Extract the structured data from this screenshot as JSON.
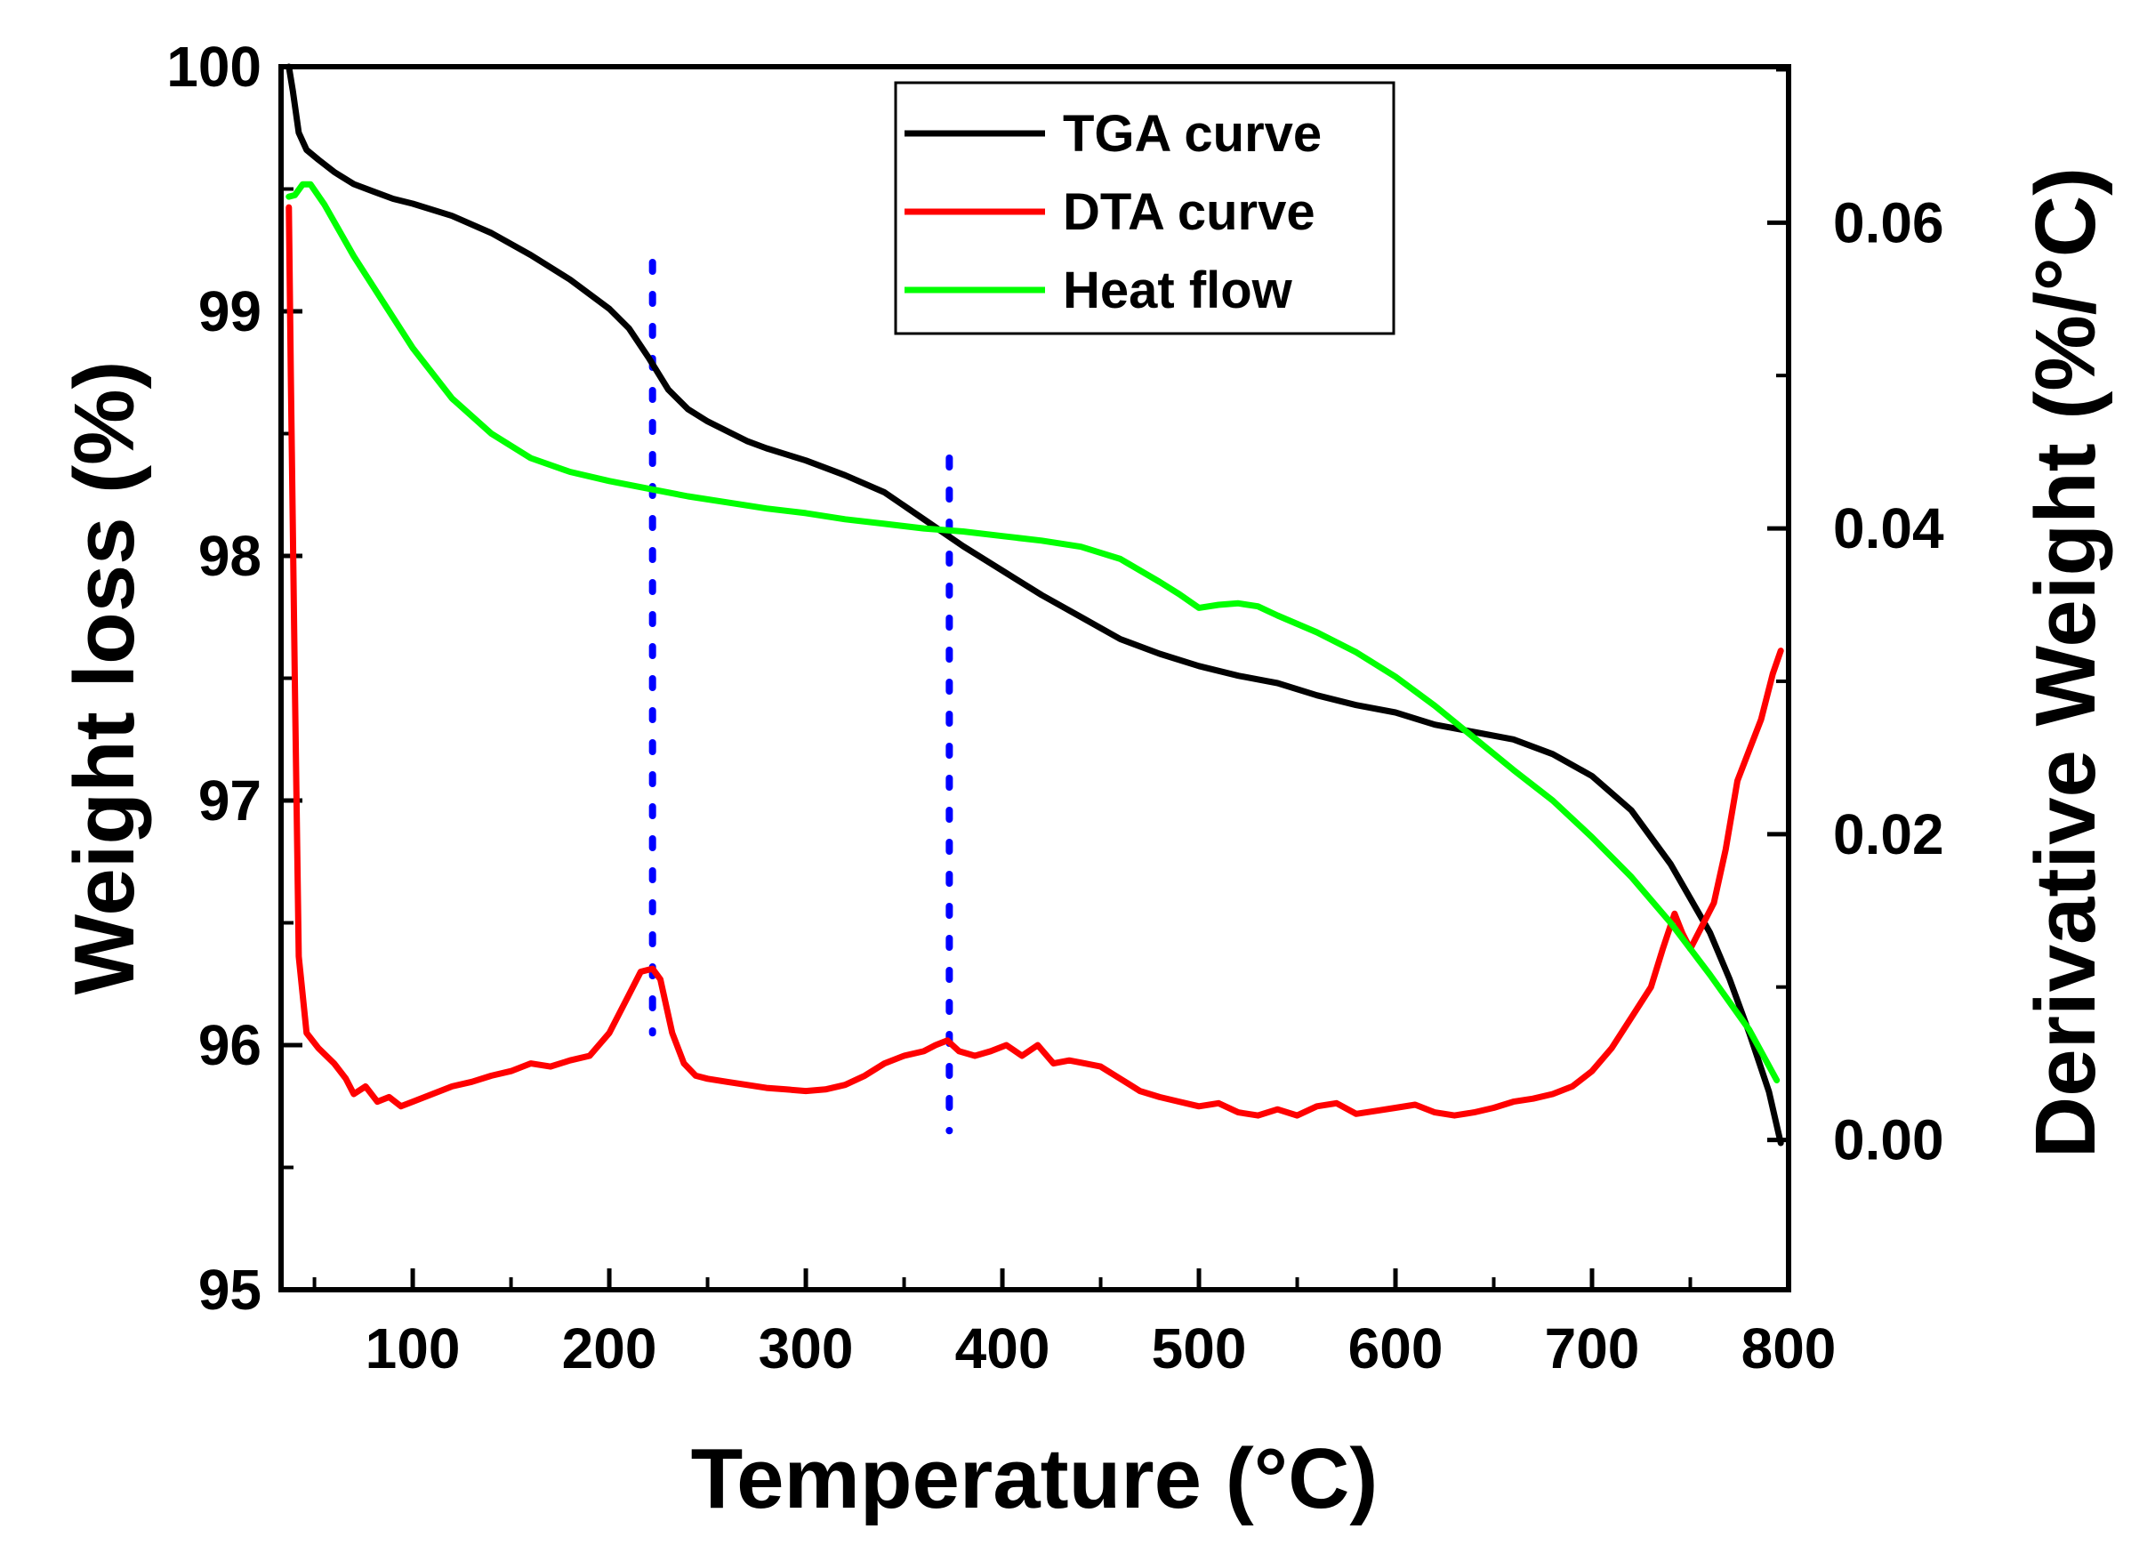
{
  "chart_data": {
    "type": "line",
    "xlabel": "Temperature (°C)",
    "ylabel_left": "Weight loss (%)",
    "ylabel_right": "Derivative Weight (%/°C)",
    "xlim": [
      33,
      800
    ],
    "ylim_left": [
      95,
      100
    ],
    "ylim_right": [
      -0.0098,
      0.0702
    ],
    "x_ticks": [
      100,
      200,
      300,
      400,
      500,
      600,
      700,
      800
    ],
    "x_tick_labels": [
      "100",
      "200",
      "300",
      "400",
      "500",
      "600",
      "700",
      "800"
    ],
    "y_left_ticks": [
      95,
      96,
      97,
      98,
      99,
      100
    ],
    "y_left_tick_labels": [
      "95",
      "96",
      "97",
      "98",
      "99",
      "100"
    ],
    "y_right_ticks": [
      0.0,
      0.02,
      0.04,
      0.06
    ],
    "y_right_tick_labels": [
      "0.00",
      "0.02",
      "0.04",
      "0.06"
    ],
    "legend_position": "top-center",
    "series": [
      {
        "name": "TGA curve",
        "axis": "left",
        "color": "#000000",
        "x": [
          37,
          39,
          42,
          46,
          52,
          60,
          70,
          80,
          90,
          100,
          120,
          140,
          160,
          180,
          200,
          210,
          220,
          230,
          240,
          250,
          260,
          270,
          280,
          300,
          320,
          340,
          360,
          380,
          400,
          420,
          440,
          460,
          480,
          500,
          520,
          540,
          560,
          580,
          600,
          620,
          640,
          660,
          680,
          700,
          720,
          740,
          760,
          770,
          780,
          790,
          796
        ],
        "values": [
          100.0,
          99.9,
          99.73,
          99.66,
          99.62,
          99.57,
          99.52,
          99.49,
          99.46,
          99.44,
          99.39,
          99.32,
          99.23,
          99.13,
          99.01,
          98.93,
          98.81,
          98.68,
          98.6,
          98.55,
          98.51,
          98.47,
          98.44,
          98.39,
          98.33,
          98.26,
          98.15,
          98.04,
          97.94,
          97.84,
          97.75,
          97.66,
          97.6,
          97.55,
          97.51,
          97.48,
          97.43,
          97.39,
          97.36,
          97.31,
          97.28,
          97.25,
          97.19,
          97.1,
          96.96,
          96.74,
          96.46,
          96.27,
          96.05,
          95.81,
          95.6
        ]
      },
      {
        "name": "DTA curve",
        "axis": "right",
        "color": "#ff0000",
        "x": [
          37,
          38,
          40,
          42,
          46,
          52,
          60,
          66,
          70,
          76,
          82,
          88,
          94,
          100,
          110,
          120,
          130,
          140,
          150,
          160,
          170,
          180,
          190,
          200,
          210,
          216,
          222,
          226,
          232,
          238,
          244,
          250,
          260,
          270,
          280,
          290,
          300,
          310,
          320,
          330,
          340,
          350,
          360,
          366,
          372,
          378,
          386,
          394,
          402,
          410,
          418,
          426,
          434,
          442,
          450,
          460,
          470,
          480,
          490,
          500,
          510,
          520,
          530,
          540,
          550,
          560,
          570,
          580,
          590,
          600,
          610,
          620,
          630,
          640,
          650,
          660,
          670,
          680,
          690,
          700,
          710,
          720,
          730,
          736,
          742,
          746,
          750,
          756,
          762,
          768,
          774,
          780,
          786,
          792,
          796
        ],
        "values": [
          0.061,
          0.05,
          0.03,
          0.012,
          0.007,
          0.006,
          0.005,
          0.004,
          0.003,
          0.0035,
          0.0025,
          0.0028,
          0.0022,
          0.0025,
          0.003,
          0.0035,
          0.0038,
          0.0042,
          0.0045,
          0.005,
          0.0048,
          0.0052,
          0.0055,
          0.007,
          0.0095,
          0.011,
          0.0112,
          0.0105,
          0.007,
          0.005,
          0.0042,
          0.004,
          0.0038,
          0.0036,
          0.0034,
          0.0033,
          0.0032,
          0.0033,
          0.0036,
          0.0042,
          0.005,
          0.0055,
          0.0058,
          0.0062,
          0.0065,
          0.0058,
          0.0055,
          0.0058,
          0.0062,
          0.0055,
          0.0062,
          0.005,
          0.0052,
          0.005,
          0.0048,
          0.004,
          0.0032,
          0.0028,
          0.0025,
          0.0022,
          0.0024,
          0.0018,
          0.0016,
          0.002,
          0.0016,
          0.0022,
          0.0024,
          0.0017,
          0.0019,
          0.0021,
          0.0023,
          0.0018,
          0.0016,
          0.0018,
          0.0021,
          0.0025,
          0.0027,
          0.003,
          0.0035,
          0.0045,
          0.006,
          0.008,
          0.01,
          0.0125,
          0.0148,
          0.0135,
          0.0125,
          0.014,
          0.0155,
          0.019,
          0.0235,
          0.0255,
          0.0275,
          0.0305,
          0.032
        ]
      },
      {
        "name": "Heat flow",
        "axis": "right",
        "color": "#00ff00",
        "x": [
          37,
          40,
          44,
          48,
          55,
          70,
          85,
          100,
          120,
          140,
          160,
          180,
          200,
          220,
          240,
          260,
          280,
          300,
          320,
          340,
          360,
          380,
          400,
          420,
          440,
          460,
          480,
          490,
          500,
          510,
          520,
          530,
          540,
          560,
          580,
          600,
          620,
          640,
          660,
          680,
          700,
          720,
          740,
          760,
          780,
          794
        ],
        "values": [
          0.0617,
          0.0618,
          0.0625,
          0.0625,
          0.0612,
          0.0578,
          0.0548,
          0.0518,
          0.0485,
          0.0462,
          0.0446,
          0.0437,
          0.0431,
          0.0426,
          0.0421,
          0.0417,
          0.0413,
          0.041,
          0.0406,
          0.0403,
          0.04,
          0.0398,
          0.0395,
          0.0392,
          0.0388,
          0.038,
          0.0365,
          0.0357,
          0.0348,
          0.035,
          0.0351,
          0.0349,
          0.0343,
          0.0332,
          0.0319,
          0.0303,
          0.0284,
          0.0263,
          0.0242,
          0.0222,
          0.0198,
          0.0172,
          0.0142,
          0.0108,
          0.0072,
          0.0039
        ]
      }
    ],
    "annotations": [
      {
        "type": "vline",
        "style": "dotted",
        "color": "#0000ff",
        "x": 222,
        "y_from": 96.05,
        "y_to": 99.2
      },
      {
        "type": "vline",
        "style": "dotted",
        "color": "#0000ff",
        "x": 373,
        "y_from": 95.65,
        "y_to": 98.4
      }
    ]
  }
}
